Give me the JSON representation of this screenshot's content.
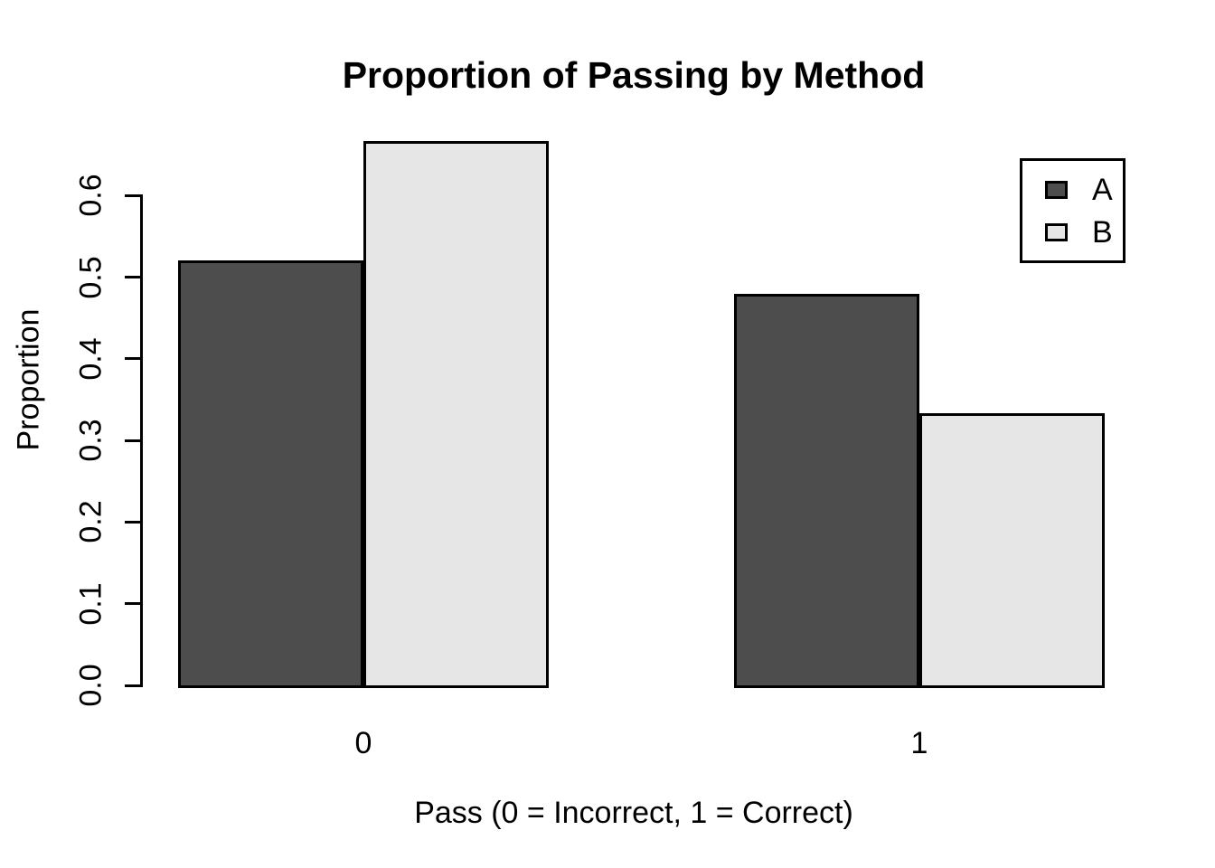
{
  "chart_data": {
    "type": "bar",
    "title": "Proportion of Passing by Method",
    "xlabel": "Pass (0 = Incorrect, 1 = Correct)",
    "ylabel": "Proportion",
    "categories": [
      "0",
      "1"
    ],
    "series": [
      {
        "name": "A",
        "color": "#4D4D4D",
        "values": [
          0.52,
          0.48
        ]
      },
      {
        "name": "B",
        "color": "#E6E6E6",
        "values": [
          0.667,
          0.333
        ]
      }
    ],
    "ylim": [
      0,
      0.6
    ],
    "yticks": [
      "0.0",
      "0.1",
      "0.2",
      "0.3",
      "0.4",
      "0.5",
      "0.6"
    ],
    "grid": false,
    "legend_position": "topright",
    "bar_border_color": "#000000",
    "axis_color": "#000000",
    "background": "#FFFFFF"
  }
}
